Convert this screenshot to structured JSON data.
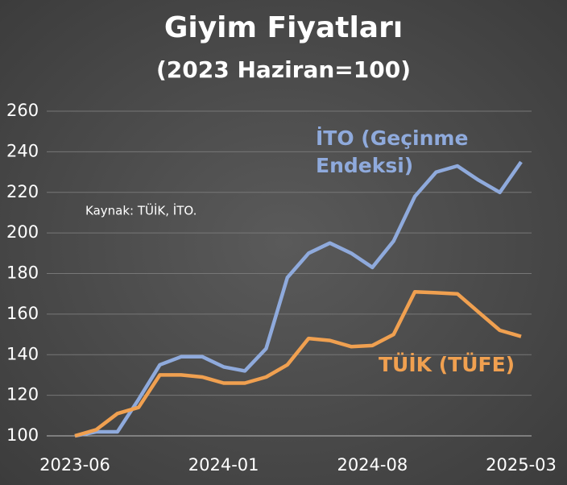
{
  "chart_data": {
    "type": "line",
    "title": "Giyim Fiyatları",
    "subtitle": "(2023 Haziran=100)",
    "annotation": "Kaynak: TÜİK, İTO.",
    "categories": [
      "2023-06",
      null,
      null,
      null,
      null,
      null,
      null,
      "2024-01",
      null,
      null,
      null,
      null,
      null,
      null,
      "2024-08",
      null,
      null,
      null,
      null,
      null,
      null,
      "2025-03"
    ],
    "series": [
      {
        "name": "İTO (Geçinme Endeksi)",
        "color": "#8faadc",
        "values": [
          100,
          102,
          102,
          118,
          135,
          139,
          139,
          134,
          132,
          143,
          178,
          190,
          195,
          190,
          183,
          196,
          218,
          230,
          233,
          226,
          220,
          235
        ]
      },
      {
        "name": "TÜİK (TÜFE)",
        "color": "#f0a050",
        "values": [
          100,
          103,
          111,
          114,
          130,
          130,
          129,
          126,
          126,
          129,
          135,
          148,
          147,
          144,
          144.5,
          150,
          171,
          170.5,
          170,
          161,
          152,
          149
        ]
      }
    ],
    "ylim": [
      100,
      260
    ],
    "yticks": [
      100,
      120,
      140,
      160,
      180,
      200,
      220,
      240,
      260
    ],
    "grid": true
  }
}
